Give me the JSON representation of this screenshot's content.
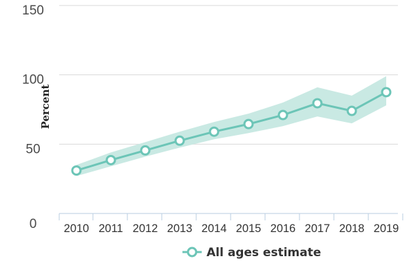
{
  "chart_data": {
    "type": "line",
    "ylabel": "Percent",
    "xlabel": "",
    "ylim": [
      0,
      150
    ],
    "y_ticks": [
      "0",
      "50",
      "100",
      "150"
    ],
    "categories": [
      "2010",
      "2011",
      "2012",
      "2013",
      "2014",
      "2015",
      "2016",
      "2017",
      "2018",
      "2019"
    ],
    "series": [
      {
        "name": "All ages estimate",
        "values": [
          31,
          38.5,
          45.5,
          52.5,
          59,
          64.5,
          71,
          79.5,
          74,
          87.5
        ],
        "lower": [
          27,
          34,
          41,
          47.5,
          53.5,
          58,
          63,
          70,
          65,
          78
        ],
        "upper": [
          35,
          44,
          51.5,
          59,
          66,
          72,
          80,
          91,
          85,
          99
        ]
      }
    ],
    "grid": true,
    "legend": "bottom-center",
    "colors": {
      "line": "#6cc5b7",
      "band": "#c9e9e3",
      "grid": "#d9d9d9",
      "axis": "#b8cde0"
    }
  }
}
